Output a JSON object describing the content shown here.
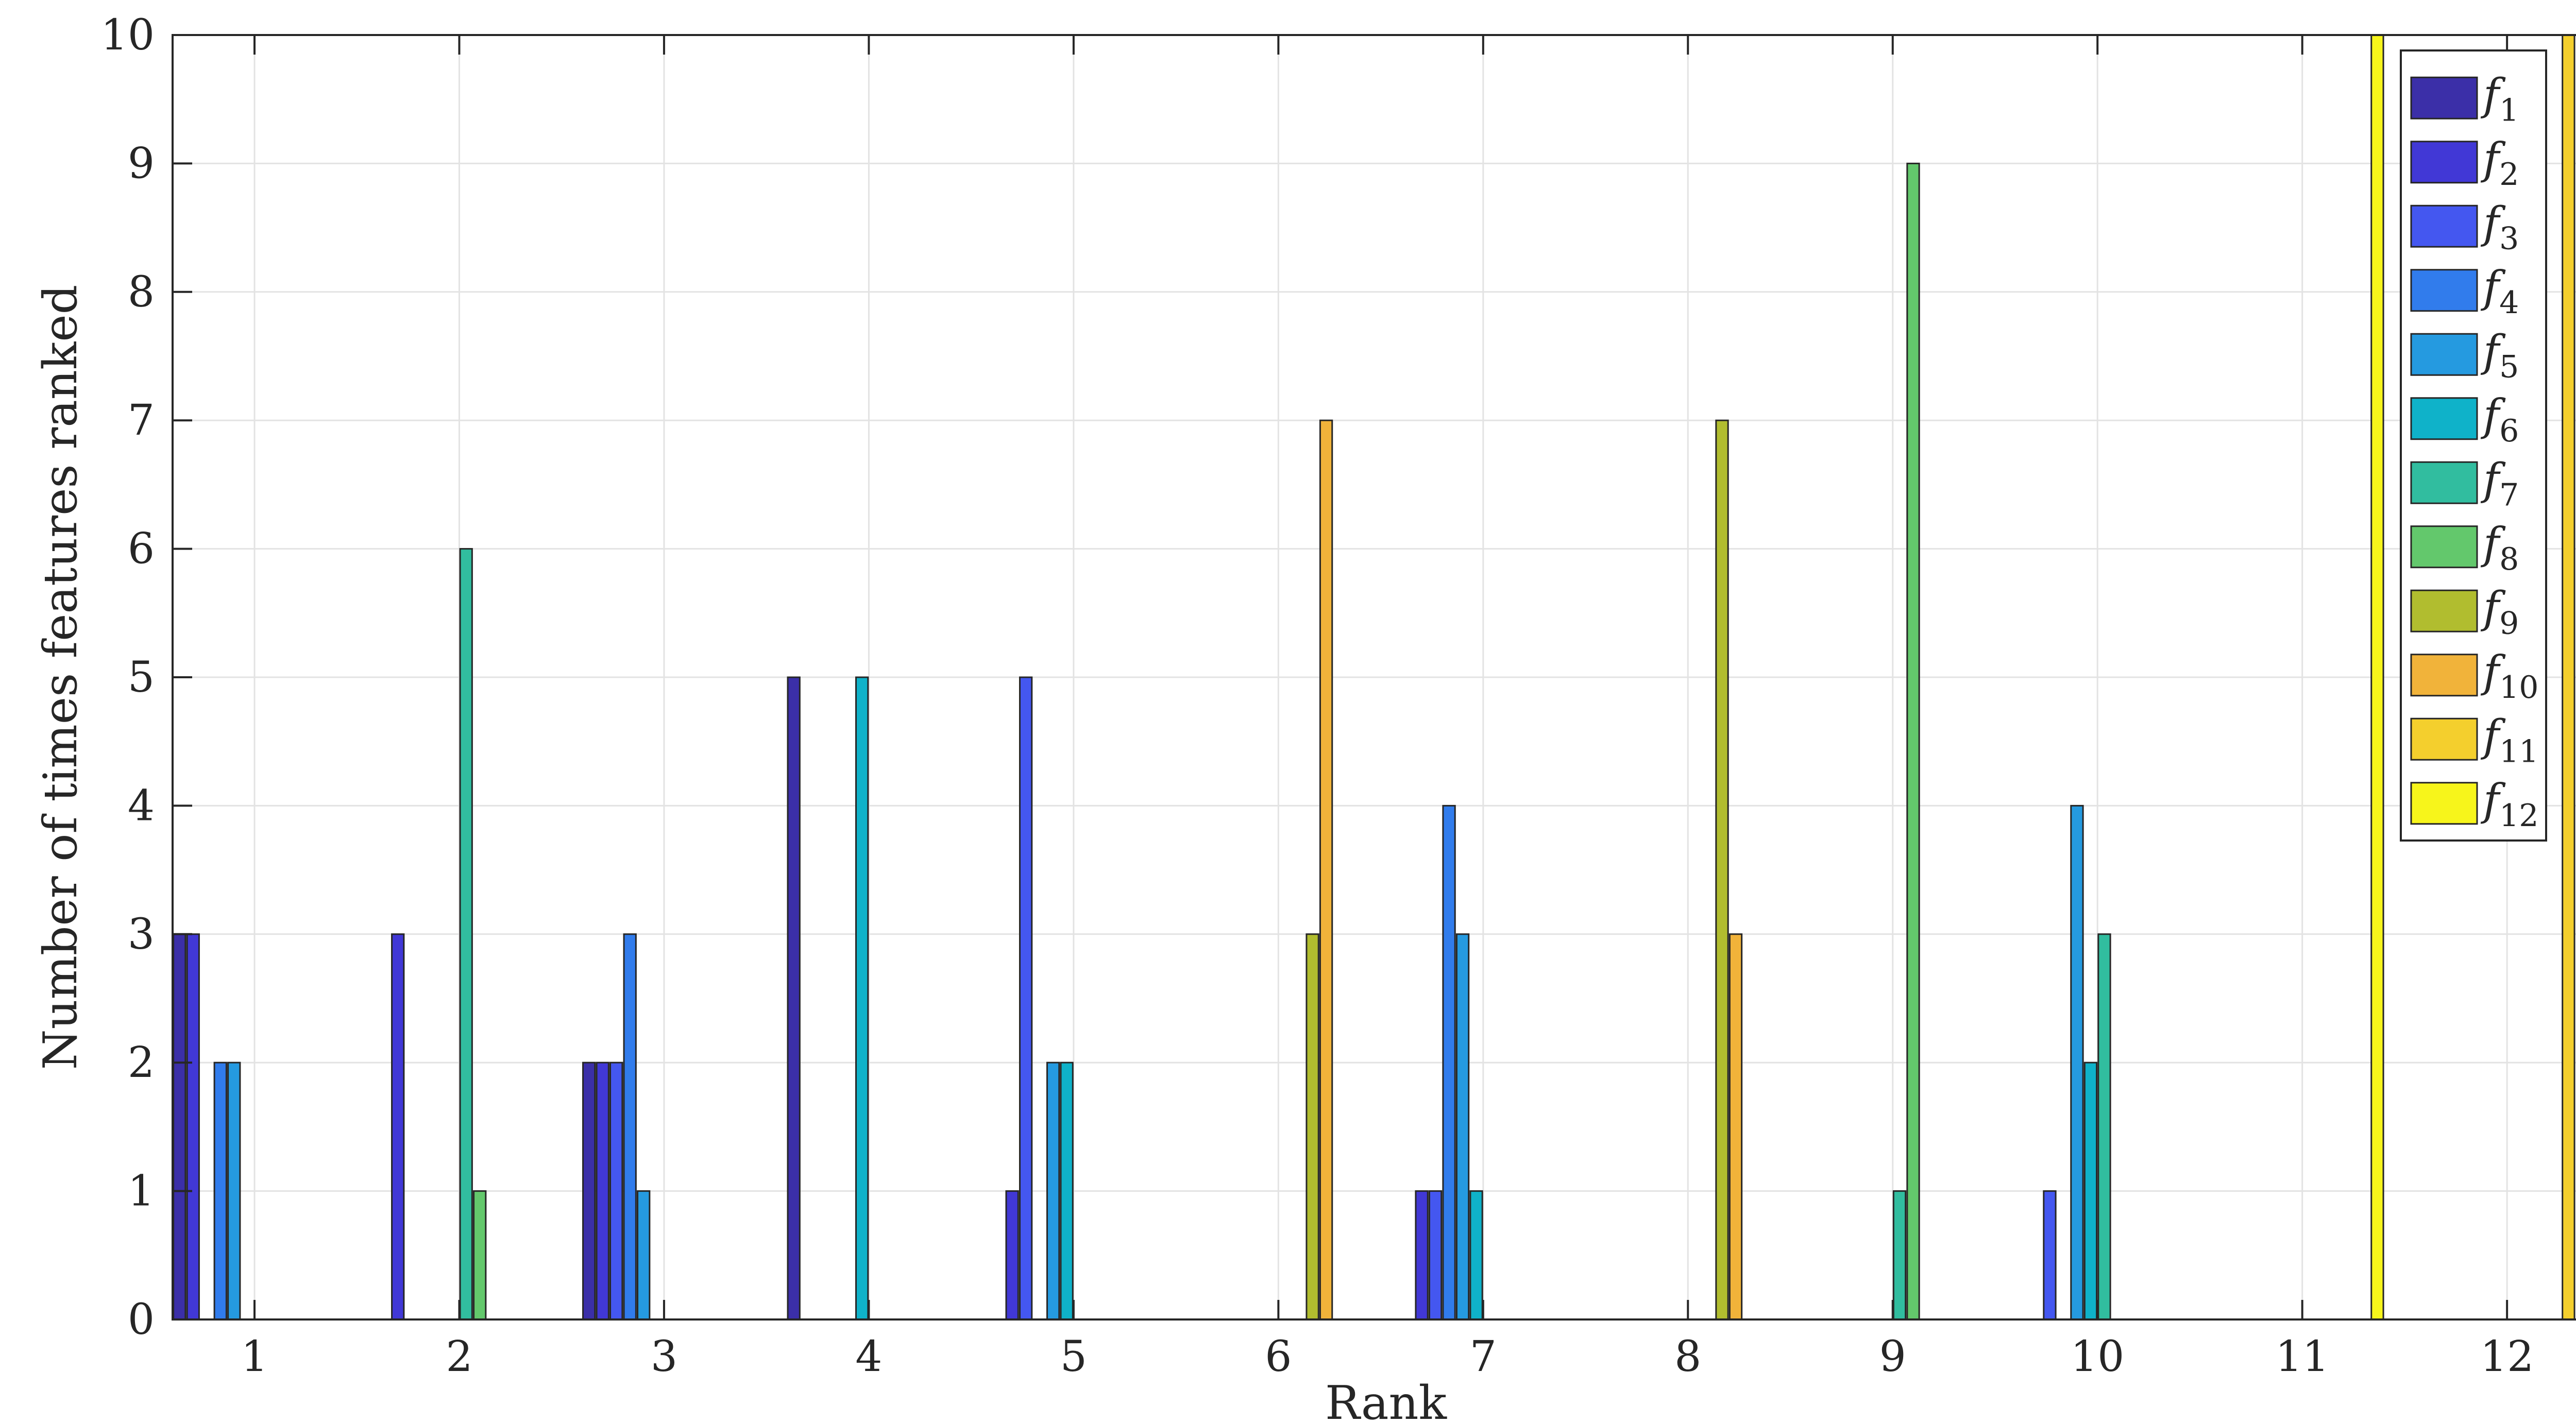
{
  "chart_data": {
    "type": "bar",
    "xlabel": "Rank",
    "ylabel": "Number of times features ranked",
    "ylim": [
      0,
      10
    ],
    "xlim": [
      0.6,
      12.45
    ],
    "categories": [
      "1",
      "2",
      "3",
      "4",
      "5",
      "6",
      "7",
      "8",
      "9",
      "10",
      "11",
      "12"
    ],
    "yticks": [
      "0",
      "1",
      "2",
      "3",
      "4",
      "5",
      "6",
      "7",
      "8",
      "9",
      "10"
    ],
    "grid": true,
    "legend_position": "top-right",
    "series": [
      {
        "name": "f",
        "sub": "1",
        "color": "#3b2fa8",
        "values": [
          3,
          0,
          2,
          5,
          0,
          0,
          0,
          0,
          0,
          0,
          0,
          0
        ]
      },
      {
        "name": "f",
        "sub": "2",
        "color": "#4138d6",
        "values": [
          3,
          3,
          2,
          0,
          1,
          0,
          1,
          0,
          0,
          0,
          0,
          0
        ]
      },
      {
        "name": "f",
        "sub": "3",
        "color": "#4457f0",
        "values": [
          0,
          0,
          2,
          0,
          5,
          0,
          1,
          0,
          0,
          1,
          0,
          0
        ]
      },
      {
        "name": "f",
        "sub": "4",
        "color": "#317cec",
        "values": [
          2,
          0,
          3,
          0,
          0,
          0,
          4,
          0,
          0,
          0,
          0,
          0
        ]
      },
      {
        "name": "f",
        "sub": "5",
        "color": "#259ae0",
        "values": [
          2,
          0,
          1,
          0,
          2,
          0,
          3,
          0,
          0,
          4,
          0,
          0
        ]
      },
      {
        "name": "f",
        "sub": "6",
        "color": "#0fb2c9",
        "values": [
          0,
          0,
          0,
          5,
          2,
          0,
          1,
          0,
          0,
          2,
          0,
          0
        ]
      },
      {
        "name": "f",
        "sub": "7",
        "color": "#31bd9f",
        "values": [
          0,
          6,
          0,
          0,
          0,
          0,
          0,
          0,
          1,
          3,
          0,
          0
        ]
      },
      {
        "name": "f",
        "sub": "8",
        "color": "#63c86c",
        "values": [
          0,
          1,
          0,
          0,
          0,
          0,
          0,
          0,
          9,
          0,
          0,
          0
        ]
      },
      {
        "name": "f",
        "sub": "9",
        "color": "#b1bd2f",
        "values": [
          0,
          0,
          0,
          0,
          0,
          3,
          0,
          7,
          0,
          0,
          0,
          0
        ]
      },
      {
        "name": "f",
        "sub": "10",
        "color": "#f1b33a",
        "values": [
          0,
          0,
          0,
          0,
          0,
          7,
          0,
          3,
          0,
          0,
          0,
          0
        ]
      },
      {
        "name": "f",
        "sub": "11",
        "color": "#f4cf2d",
        "values": [
          0,
          0,
          0,
          0,
          0,
          0,
          0,
          0,
          0,
          0,
          0,
          10
        ]
      },
      {
        "name": "f",
        "sub": "12",
        "color": "#f7f51b",
        "values": [
          0,
          0,
          0,
          0,
          0,
          0,
          0,
          0,
          0,
          0,
          10,
          0
        ]
      }
    ]
  }
}
